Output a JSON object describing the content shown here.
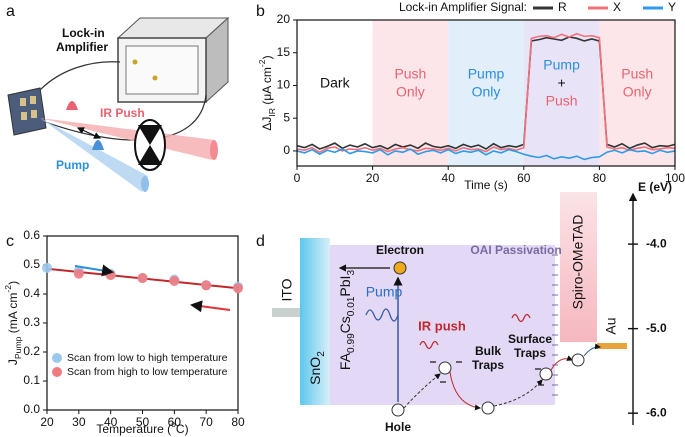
{
  "panel_labels": [
    "a",
    "b",
    "c",
    "d"
  ],
  "schematic": {
    "instrument": [
      "Lock-in",
      "Amplifier"
    ],
    "ir_beam": "IR Push",
    "pump_beam": "Pump"
  },
  "chart_data": [
    {
      "type": "line",
      "legend_title": "Lock-in Amplifier Signal:",
      "legend": "top",
      "xlabel": "Time (s)",
      "ylabel": [
        {
          "t": "ΔJ"
        },
        {
          "sub": "IR"
        },
        {
          "t": " (μA cm"
        },
        {
          "sup": "-2"
        },
        {
          "t": ")"
        }
      ],
      "xlim": [
        0,
        100
      ],
      "xticks": [
        0,
        20,
        40,
        60,
        80,
        100
      ],
      "ylim": [
        -2.3,
        20
      ],
      "yticks": [
        0,
        5,
        10,
        15,
        20
      ],
      "regions": [
        {
          "xlim": [
            0,
            20
          ],
          "color": "#ffffff",
          "label": [
            "Dark"
          ],
          "colors": [
            "#111111"
          ]
        },
        {
          "xlim": [
            20,
            40
          ],
          "color": "#fde6ea",
          "label": [
            "Push",
            "Only"
          ],
          "colors": [
            "#e8636f",
            "#e8636f"
          ]
        },
        {
          "xlim": [
            40,
            60
          ],
          "color": "#e2eef9",
          "label": [
            "Pump",
            "Only"
          ],
          "colors": [
            "#2b8fdc",
            "#2b8fdc"
          ]
        },
        {
          "xlim": [
            60,
            80
          ],
          "color": "#e9e3f8",
          "label": [
            "Pump",
            "+",
            "Push"
          ],
          "colors": [
            "#2b8fdc",
            "#111111",
            "#e8636f"
          ]
        },
        {
          "xlim": [
            80,
            100
          ],
          "color": "#fde6ea",
          "label": [
            "Push",
            "Only"
          ],
          "colors": [
            "#e8636f",
            "#e8636f"
          ]
        }
      ],
      "x": [
        0,
        2,
        4,
        6,
        8,
        10,
        12,
        14,
        16,
        18,
        20,
        22,
        24,
        26,
        28,
        30,
        32,
        34,
        36,
        38,
        40,
        42,
        44,
        46,
        48,
        50,
        52,
        54,
        56,
        58,
        60,
        62,
        64,
        66,
        68,
        70,
        72,
        74,
        76,
        78,
        80,
        82,
        84,
        86,
        88,
        90,
        92,
        94,
        96,
        98,
        100
      ],
      "series": [
        {
          "name": "R",
          "color": "#333333",
          "values": [
            0.8,
            0.5,
            1.0,
            0.3,
            0.7,
            1.2,
            0.4,
            0.9,
            0.6,
            1.1,
            0.5,
            0.8,
            0.3,
            1.0,
            0.6,
            0.9,
            0.4,
            1.2,
            0.7,
            0.5,
            0.8,
            0.4,
            1.0,
            0.6,
            0.9,
            0.3,
            1.1,
            0.5,
            0.8,
            0.6,
            1.0,
            16.8,
            17.0,
            17.3,
            17.1,
            16.9,
            17.4,
            17.2,
            16.8,
            17.1,
            16.8,
            1.0,
            0.6,
            1.1,
            0.4,
            0.9,
            1.2,
            0.5,
            0.8,
            0.7,
            1.0
          ]
        },
        {
          "name": "X",
          "color": "#f0717b",
          "values": [
            0.3,
            0.1,
            0.5,
            -0.2,
            0.4,
            0.6,
            0.0,
            0.3,
            0.2,
            0.5,
            0.1,
            0.4,
            -0.1,
            0.3,
            0.5,
            0.2,
            0.0,
            0.4,
            0.3,
            0.1,
            0.4,
            0.0,
            0.5,
            0.2,
            0.3,
            -0.1,
            0.6,
            0.2,
            0.4,
            0.1,
            0.5,
            17.2,
            17.5,
            17.6,
            17.3,
            17.8,
            17.4,
            17.9,
            17.5,
            17.6,
            17.3,
            0.6,
            0.3,
            0.5,
            0.1,
            0.4,
            0.6,
            0.2,
            0.3,
            0.5,
            0.4
          ]
        },
        {
          "name": "Y",
          "color": "#2f9be8",
          "values": [
            0.0,
            -0.3,
            0.2,
            -0.5,
            0.1,
            -0.2,
            0.3,
            -0.4,
            0.0,
            -0.1,
            -0.3,
            0.2,
            -0.6,
            0.0,
            -0.2,
            0.3,
            -0.5,
            -0.1,
            0.1,
            -0.3,
            0.2,
            -0.4,
            0.0,
            -0.2,
            0.1,
            -0.6,
            0.0,
            -0.3,
            0.2,
            -0.1,
            -0.5,
            -0.8,
            -1.0,
            -0.7,
            -1.2,
            -0.9,
            -1.1,
            -0.8,
            -1.3,
            -1.0,
            -0.9,
            -0.2,
            0.1,
            -0.3,
            0.2,
            -0.1,
            0.0,
            -0.4,
            0.1,
            -0.2,
            0.0
          ]
        }
      ]
    },
    {
      "type": "scatter",
      "legend": "lower left",
      "xlabel": [
        {
          "t": "Temperature ("
        },
        {
          "sup": "o"
        },
        {
          "t": "C)"
        }
      ],
      "ylabel": [
        {
          "t": "J"
        },
        {
          "sub": "Pump"
        },
        {
          "t": " (mA cm"
        },
        {
          "sup": "-2"
        },
        {
          "t": ")"
        }
      ],
      "xlim": [
        20,
        80
      ],
      "xticks": [
        20,
        30,
        40,
        50,
        60,
        70,
        80
      ],
      "ylim": [
        0,
        0.6
      ],
      "yticks": [
        {
          "value": 0,
          "label": "0.0"
        },
        0.1,
        0.2,
        0.3,
        0.4,
        0.5,
        0.6
      ],
      "series": [
        {
          "name": "Scan from low to high temperature",
          "color": "#9cc8ee",
          "x": [
            20,
            30,
            40,
            50,
            60,
            70,
            80
          ],
          "values": [
            0.49,
            0.48,
            0.47,
            0.455,
            0.45,
            0.43,
            0.425
          ]
        },
        {
          "name": "Scan from high to low temperature",
          "color": "#f07a80",
          "x": [
            30,
            40,
            50,
            60,
            70,
            80
          ],
          "values": [
            0.47,
            0.465,
            0.455,
            0.445,
            0.43,
            0.42
          ]
        }
      ],
      "fit": {
        "color": "#c0282e",
        "x": [
          20,
          80
        ],
        "values": [
          0.487,
          0.42
        ]
      }
    }
  ],
  "diagram": {
    "layers": {
      "ito": "ITO",
      "etl": [
        {
          "t": "SnO"
        },
        {
          "sub": "2"
        }
      ],
      "absorber": [
        {
          "t": "FA"
        },
        {
          "sub": "0.99"
        },
        {
          "t": "Cs"
        },
        {
          "sub": "0.01"
        },
        {
          "t": "PbI"
        },
        {
          "sub": "3"
        }
      ],
      "htl": "Spiro-OMeTAD",
      "electrode": "Au",
      "passivation": "OAI Passivation"
    },
    "labels": {
      "electron": "Electron",
      "hole": "Hole",
      "pump": "Pump",
      "ir_push": "IR push",
      "bulk_traps": [
        "Bulk",
        "Traps"
      ],
      "surface_traps": [
        "Surface",
        "Traps"
      ]
    },
    "energy_axis": {
      "label": "E (eV)",
      "lim": [
        -6.14,
        -3.36
      ],
      "ticks": [
        {
          "value": -4,
          "label": "-4.0"
        },
        {
          "value": -5,
          "label": "-5.0"
        },
        {
          "value": -6,
          "label": "-6.0"
        }
      ]
    }
  }
}
